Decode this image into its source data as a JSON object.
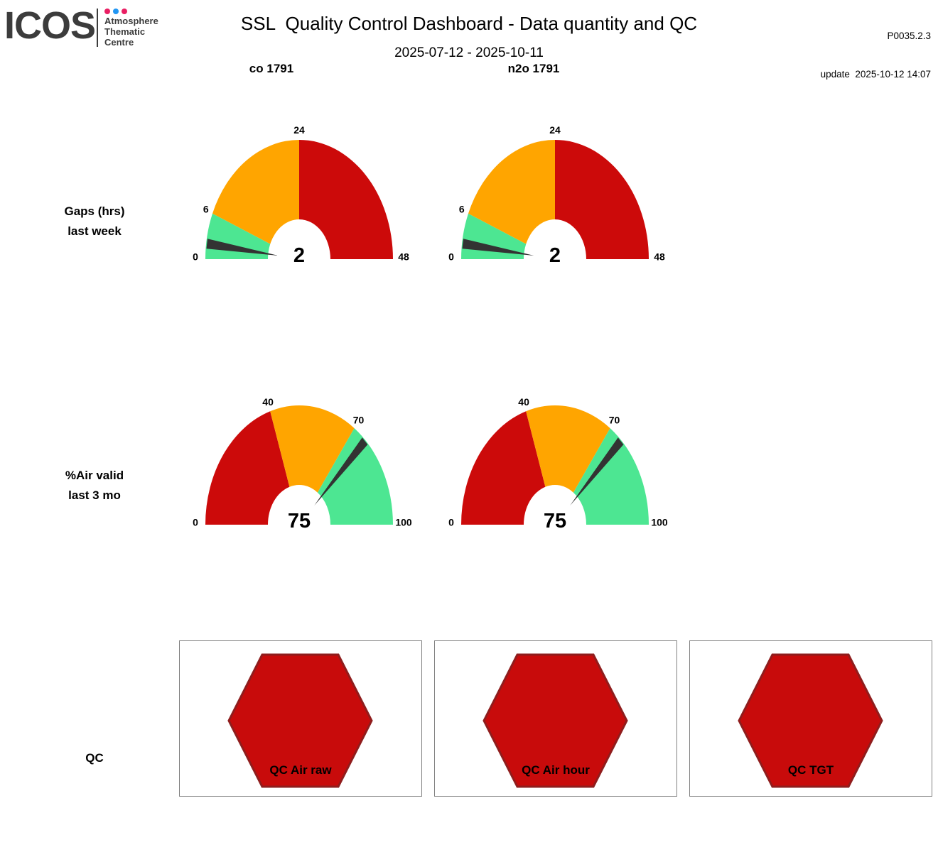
{
  "header": {
    "logo": {
      "brand": "ICOS",
      "dots": [
        "#E91E63",
        "#2196F3",
        "#E91E63"
      ],
      "org_lines": [
        "Atmosphere",
        "Thematic",
        "Centre"
      ]
    },
    "title": "SSL  Quality Control Dashboard - Data quantity and QC",
    "subtitle": "2025-07-12 - 2025-10-11",
    "product_code": "P0035.2.3",
    "update_label": "update  2025-10-12 14:07"
  },
  "columns": [
    {
      "label": "co 1791"
    },
    {
      "label": "n2o 1791"
    }
  ],
  "row_labels": [
    {
      "line1": "Gaps (hrs)",
      "line2": "last week"
    },
    {
      "line1": "%Air valid",
      "line2": "last 3 mo"
    },
    {
      "line1": "QC",
      "line2": ""
    }
  ],
  "colors": {
    "green": "#4DE692",
    "orange": "#FFA500",
    "red": "#CC0A0A",
    "needle": "#333333",
    "hex_fill": "#C80B0B",
    "hex_stroke": "#8F1D1D",
    "box_border": "#808080"
  },
  "chart_data": [
    {
      "type": "gauge",
      "name": "gaps-last-week-co",
      "row": "Gaps (hrs) last week",
      "column": "co 1791",
      "min": 0,
      "max": 48,
      "value": 2,
      "ticks": [
        0,
        6,
        24,
        48
      ],
      "segments": [
        {
          "from": 0,
          "to": 6,
          "color": "#4DE692"
        },
        {
          "from": 6,
          "to": 24,
          "color": "#FFA500"
        },
        {
          "from": 24,
          "to": 48,
          "color": "#CC0A0A"
        }
      ]
    },
    {
      "type": "gauge",
      "name": "gaps-last-week-n2o",
      "row": "Gaps (hrs) last week",
      "column": "n2o 1791",
      "min": 0,
      "max": 48,
      "value": 2,
      "ticks": [
        0,
        6,
        24,
        48
      ],
      "segments": [
        {
          "from": 0,
          "to": 6,
          "color": "#4DE692"
        },
        {
          "from": 6,
          "to": 24,
          "color": "#FFA500"
        },
        {
          "from": 24,
          "to": 48,
          "color": "#CC0A0A"
        }
      ]
    },
    {
      "type": "gauge",
      "name": "air-valid-3mo-co",
      "row": "%Air valid last 3 mo",
      "column": "co 1791",
      "min": 0,
      "max": 100,
      "value": 75,
      "ticks": [
        0,
        40,
        70,
        100
      ],
      "segments": [
        {
          "from": 0,
          "to": 40,
          "color": "#CC0A0A"
        },
        {
          "from": 40,
          "to": 70,
          "color": "#FFA500"
        },
        {
          "from": 70,
          "to": 100,
          "color": "#4DE692"
        }
      ]
    },
    {
      "type": "gauge",
      "name": "air-valid-3mo-n2o",
      "row": "%Air valid last 3 mo",
      "column": "n2o 1791",
      "min": 0,
      "max": 100,
      "value": 75,
      "ticks": [
        0,
        40,
        70,
        100
      ],
      "segments": [
        {
          "from": 0,
          "to": 40,
          "color": "#CC0A0A"
        },
        {
          "from": 40,
          "to": 70,
          "color": "#FFA500"
        },
        {
          "from": 70,
          "to": 100,
          "color": "#4DE692"
        }
      ]
    }
  ],
  "qc_panels": [
    {
      "label": "QC Air raw"
    },
    {
      "label": "QC Air hour"
    },
    {
      "label": "QC TGT"
    }
  ]
}
